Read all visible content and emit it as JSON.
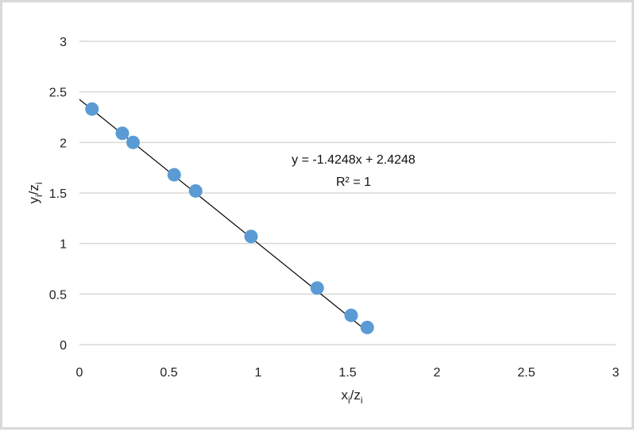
{
  "chart_data": {
    "type": "scatter",
    "x_axis": {
      "min": 0,
      "max": 3,
      "ticks": [
        "0",
        "0.5",
        "1",
        "1.5",
        "2",
        "2.5",
        "3"
      ]
    },
    "y_axis": {
      "min": 0,
      "max": 3,
      "ticks": [
        "0",
        "0.5",
        "1",
        "1.5",
        "2",
        "2.5",
        "3"
      ]
    },
    "xlabel": {
      "main": "x",
      "sub1": "i",
      "sep": "/z",
      "sub2": "i"
    },
    "ylabel": {
      "main": "y",
      "sub1": "i",
      "sep": "/z",
      "sub2": "i"
    },
    "grid": "horizontal",
    "legend": "none",
    "series": [
      {
        "marker_color": "#5b9bd5",
        "points": [
          {
            "x": 0.07,
            "y": 2.33
          },
          {
            "x": 0.24,
            "y": 2.09
          },
          {
            "x": 0.3,
            "y": 2.0
          },
          {
            "x": 0.53,
            "y": 1.68
          },
          {
            "x": 0.65,
            "y": 1.52
          },
          {
            "x": 0.96,
            "y": 1.07
          },
          {
            "x": 1.33,
            "y": 0.56
          },
          {
            "x": 1.52,
            "y": 0.29
          },
          {
            "x": 1.61,
            "y": 0.17
          }
        ]
      }
    ],
    "trendline": {
      "slope": -1.4248,
      "intercept": 2.4248,
      "x_range": [
        0,
        1.62
      ],
      "color": "#000000",
      "equation_text": "y = -1.4248x + 2.4248",
      "r2_text": "R² = 1"
    }
  }
}
